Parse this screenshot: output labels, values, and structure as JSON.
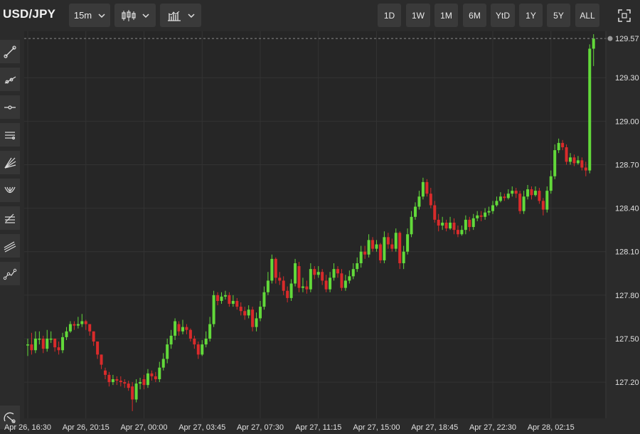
{
  "symbol": "USD/JPY",
  "toolbar": {
    "interval": "15m",
    "range_buttons": [
      "1D",
      "1W",
      "1M",
      "6M",
      "YtD",
      "1Y",
      "5Y",
      "ALL"
    ]
  },
  "sidebar_tools": [
    "trend-line-icon",
    "ray-icon",
    "horizontal-line-icon",
    "parallel-channel-icon",
    "fan-icon",
    "pitchfork-icon",
    "fibonacci-icon",
    "regression-channel-icon",
    "path-icon",
    "measure-icon"
  ],
  "colors": {
    "background": "#2b2b2b",
    "plot_background": "#262626",
    "up": "#62d93a",
    "down": "#d92b2b",
    "grid": "#333333",
    "axis_text": "#e0e0e0"
  },
  "chart_data": {
    "type": "candlestick",
    "title": "",
    "xlabel": "",
    "ylabel": "",
    "ylim": [
      126.95,
      129.62
    ],
    "price_ticks": [
      "127.20",
      "127.50",
      "127.80",
      "128.10",
      "128.40",
      "128.70",
      "129.00",
      "129.30"
    ],
    "last_price": "129.57",
    "time_ticks": [
      "Apr 26, 16:30",
      "Apr 26, 20:15",
      "Apr 27, 00:00",
      "Apr 27, 03:45",
      "Apr 27, 07:30",
      "Apr 27, 11:15",
      "Apr 27, 15:00",
      "Apr 27, 18:45",
      "Apr 27, 22:30",
      "Apr 28, 02:15"
    ],
    "bars_per_tick": 15,
    "grid": true,
    "close": [
      127.46,
      127.42,
      127.5,
      127.5,
      127.43,
      127.5,
      127.5,
      127.44,
      127.42,
      127.51,
      127.55,
      127.6,
      127.59,
      127.6,
      127.62,
      127.6,
      127.55,
      127.48,
      127.39,
      127.32,
      127.25,
      127.2,
      127.22,
      127.21,
      127.2,
      127.19,
      127.16,
      127.08,
      127.19,
      127.2,
      127.18,
      127.26,
      127.24,
      127.22,
      127.3,
      127.36,
      127.46,
      127.52,
      127.62,
      127.55,
      127.58,
      127.56,
      127.5,
      127.46,
      127.39,
      127.46,
      127.5,
      127.6,
      127.8,
      127.76,
      127.79,
      127.8,
      127.74,
      127.76,
      127.72,
      127.69,
      127.66,
      127.7,
      127.58,
      127.64,
      127.72,
      127.82,
      127.9,
      128.05,
      127.92,
      127.9,
      127.83,
      127.78,
      127.88,
      128.02,
      127.85,
      127.86,
      127.84,
      127.98,
      127.94,
      127.96,
      127.9,
      127.84,
      127.92,
      127.98,
      127.95,
      127.85,
      127.9,
      127.93,
      127.98,
      128.02,
      128.1,
      128.08,
      128.18,
      128.12,
      128.15,
      128.04,
      128.2,
      128.15,
      128.12,
      128.23,
      128.02,
      128.1,
      128.22,
      128.34,
      128.41,
      128.48,
      128.58,
      128.5,
      128.42,
      128.32,
      128.28,
      128.3,
      128.26,
      128.3,
      128.25,
      128.22,
      128.25,
      128.32,
      128.27,
      128.33,
      128.35,
      128.34,
      128.37,
      128.38,
      128.42,
      128.45,
      128.48,
      128.47,
      128.5,
      128.52,
      128.5,
      128.38,
      128.48,
      128.53,
      128.49,
      128.52,
      128.45,
      128.39,
      128.52,
      128.62,
      128.8,
      128.85,
      128.82,
      128.72,
      128.75,
      128.71,
      128.73,
      128.68,
      128.66,
      129.5,
      129.57
    ],
    "high": [
      127.5,
      127.54,
      127.55,
      127.55,
      127.52,
      127.56,
      127.55,
      127.5,
      127.48,
      127.54,
      127.58,
      127.62,
      127.62,
      127.65,
      127.67,
      127.63,
      127.6,
      127.55,
      127.48,
      127.39,
      127.3,
      127.27,
      127.25,
      127.24,
      127.24,
      127.22,
      127.21,
      127.2,
      127.22,
      127.23,
      127.25,
      127.29,
      127.28,
      127.27,
      127.34,
      127.4,
      127.5,
      127.56,
      127.64,
      127.62,
      127.63,
      127.6,
      127.57,
      127.52,
      127.48,
      127.49,
      127.55,
      127.65,
      127.83,
      127.82,
      127.82,
      127.83,
      127.82,
      127.8,
      127.78,
      127.75,
      127.72,
      127.73,
      127.72,
      127.68,
      127.76,
      127.86,
      127.96,
      128.08,
      128.06,
      127.96,
      127.93,
      127.86,
      127.91,
      128.05,
      128.03,
      127.92,
      127.9,
      128.02,
      128.0,
      128.0,
      127.98,
      127.94,
      127.96,
      128.02,
      128.0,
      127.98,
      127.94,
      127.97,
      128.02,
      128.06,
      128.14,
      128.14,
      128.22,
      128.2,
      128.18,
      128.16,
      128.24,
      128.23,
      128.19,
      128.26,
      128.24,
      128.14,
      128.26,
      128.38,
      128.44,
      128.52,
      128.61,
      128.6,
      128.54,
      128.45,
      128.36,
      128.34,
      128.32,
      128.34,
      128.33,
      128.28,
      128.28,
      128.35,
      128.34,
      128.36,
      128.38,
      128.38,
      128.4,
      128.41,
      128.45,
      128.48,
      128.51,
      128.5,
      128.53,
      128.55,
      128.54,
      128.52,
      128.52,
      128.56,
      128.55,
      128.55,
      128.54,
      128.47,
      128.55,
      128.66,
      128.84,
      128.88,
      128.87,
      128.84,
      128.78,
      128.77,
      128.76,
      128.75,
      128.72,
      129.53,
      129.6
    ],
    "low": [
      127.38,
      127.39,
      127.4,
      127.46,
      127.4,
      127.41,
      127.47,
      127.41,
      127.39,
      127.4,
      127.49,
      127.54,
      127.56,
      127.57,
      127.58,
      127.56,
      127.52,
      127.45,
      127.36,
      127.29,
      127.22,
      127.17,
      127.18,
      127.18,
      127.17,
      127.16,
      127.14,
      127.0,
      127.06,
      127.15,
      127.15,
      127.16,
      127.21,
      127.2,
      127.2,
      127.28,
      127.33,
      127.43,
      127.49,
      127.52,
      127.53,
      127.53,
      127.48,
      127.43,
      127.36,
      127.38,
      127.44,
      127.48,
      127.58,
      127.73,
      127.74,
      127.77,
      127.72,
      127.72,
      127.7,
      127.66,
      127.63,
      127.64,
      127.55,
      127.55,
      127.62,
      127.7,
      127.8,
      127.88,
      127.88,
      127.87,
      127.8,
      127.75,
      127.76,
      127.86,
      127.82,
      127.82,
      127.81,
      127.82,
      127.91,
      127.92,
      127.87,
      127.82,
      127.82,
      127.9,
      127.92,
      127.83,
      127.83,
      127.88,
      127.91,
      127.96,
      127.99,
      128.05,
      128.06,
      128.1,
      128.1,
      128.02,
      128.02,
      128.12,
      128.1,
      128.1,
      127.98,
      127.98,
      128.08,
      128.2,
      128.32,
      128.39,
      128.46,
      128.48,
      128.4,
      128.3,
      128.24,
      128.25,
      128.24,
      128.25,
      128.22,
      128.2,
      128.21,
      128.22,
      128.24,
      128.25,
      128.31,
      128.31,
      128.32,
      128.35,
      128.36,
      128.41,
      128.44,
      128.45,
      128.46,
      128.48,
      128.47,
      128.36,
      128.36,
      128.46,
      128.46,
      128.48,
      128.43,
      128.35,
      128.37,
      128.5,
      128.6,
      128.78,
      128.8,
      128.7,
      128.7,
      128.69,
      128.7,
      128.66,
      128.62,
      128.64,
      129.38
    ],
    "open": [
      127.46,
      127.46,
      127.42,
      127.5,
      127.5,
      127.43,
      127.5,
      127.5,
      127.44,
      127.42,
      127.51,
      127.55,
      127.6,
      127.59,
      127.6,
      127.62,
      127.6,
      127.55,
      127.48,
      127.39,
      127.28,
      127.25,
      127.2,
      127.22,
      127.21,
      127.2,
      127.19,
      127.17,
      127.08,
      127.19,
      127.22,
      127.18,
      127.26,
      127.24,
      127.22,
      127.3,
      127.36,
      127.46,
      127.52,
      127.6,
      127.55,
      127.58,
      127.56,
      127.5,
      127.46,
      127.39,
      127.46,
      127.5,
      127.6,
      127.8,
      127.76,
      127.79,
      127.8,
      127.74,
      127.76,
      127.72,
      127.69,
      127.66,
      127.7,
      127.58,
      127.64,
      127.72,
      127.82,
      127.9,
      128.05,
      127.92,
      127.9,
      127.83,
      127.78,
      127.88,
      128.0,
      127.85,
      127.86,
      127.84,
      127.98,
      127.94,
      127.96,
      127.9,
      127.84,
      127.92,
      127.98,
      127.95,
      127.85,
      127.9,
      127.93,
      127.98,
      128.02,
      128.1,
      128.08,
      128.18,
      128.12,
      128.15,
      128.04,
      128.2,
      128.15,
      128.12,
      128.23,
      128.02,
      128.1,
      128.22,
      128.34,
      128.41,
      128.48,
      128.58,
      128.5,
      128.42,
      128.32,
      128.28,
      128.3,
      128.26,
      128.3,
      128.25,
      128.22,
      128.25,
      128.32,
      128.27,
      128.33,
      128.35,
      128.34,
      128.37,
      128.38,
      128.42,
      128.45,
      128.48,
      128.47,
      128.5,
      128.52,
      128.5,
      128.38,
      128.48,
      128.53,
      128.49,
      128.52,
      128.45,
      128.39,
      128.52,
      128.62,
      128.8,
      128.85,
      128.82,
      128.72,
      128.75,
      128.71,
      128.73,
      128.68,
      128.66,
      129.5
    ]
  }
}
